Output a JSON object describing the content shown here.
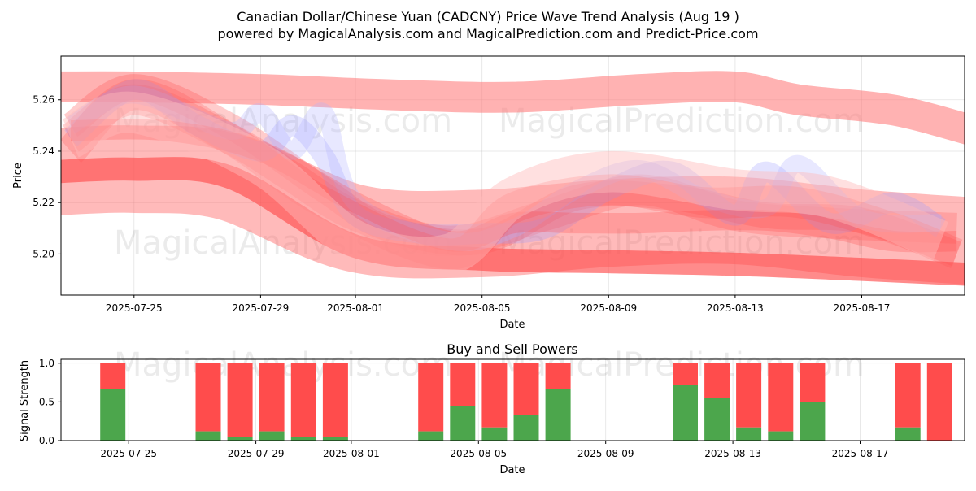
{
  "chart_data": [
    {
      "type": "area",
      "title": "Canadian Dollar/Chinese Yuan (CADCNY) Price Wave Trend Analysis (Aug 19 )",
      "subtitle": "powered by MagicalAnalysis.com and MagicalPrediction.com and Predict-Price.com",
      "xlabel": "Date",
      "ylabel": "Price",
      "x_start": "2025-07-23",
      "x_end": "2025-08-20",
      "ylim": [
        5.184,
        5.277
      ],
      "xticks": [
        {
          "label": "2025-07-25",
          "day": 2
        },
        {
          "label": "2025-07-29",
          "day": 6
        },
        {
          "label": "2025-08-01",
          "day": 9
        },
        {
          "label": "2025-08-05",
          "day": 13
        },
        {
          "label": "2025-08-09",
          "day": 17
        },
        {
          "label": "2025-08-13",
          "day": 21
        },
        {
          "label": "2025-08-17",
          "day": 25
        }
      ],
      "yticks": [
        {
          "label": "5.20",
          "value": 5.2
        },
        {
          "label": "5.22",
          "value": 5.22
        },
        {
          "label": "5.24",
          "value": 5.24
        },
        {
          "label": "5.26",
          "value": 5.26
        }
      ],
      "grid": true,
      "watermark": [
        "MagicalAnalysis.com",
        "MagicalPrediction.com"
      ],
      "bands": [
        {
          "name": "upper-trend",
          "color": "#ff7f7f",
          "opacity": 0.6,
          "width": 0.012,
          "x": [
            -0.5,
            2,
            6,
            10,
            14,
            18,
            21,
            23,
            26,
            28.5
          ],
          "y": [
            5.265,
            5.265,
            5.264,
            5.262,
            5.261,
            5.264,
            5.265,
            5.26,
            5.256,
            5.248
          ]
        },
        {
          "name": "middle-trend",
          "color": "#ff6666",
          "opacity": 0.45,
          "width": 0.034,
          "x": [
            -0.5,
            2,
            5,
            9,
            13,
            17,
            21,
            25,
            28.5
          ],
          "y": [
            5.232,
            5.233,
            5.23,
            5.21,
            5.208,
            5.212,
            5.213,
            5.208,
            5.205
          ]
        },
        {
          "name": "lower-trend",
          "color": "#ff4d4d",
          "opacity": 0.65,
          "width": 0.009,
          "x": [
            -0.5,
            2,
            5,
            9,
            13,
            17,
            21,
            25,
            28.5
          ],
          "y": [
            5.232,
            5.233,
            5.23,
            5.203,
            5.198,
            5.197,
            5.196,
            5.194,
            5.192
          ]
        },
        {
          "name": "wave-1",
          "color": "#ff5555",
          "opacity": 0.3,
          "width": 0.01,
          "x": [
            0,
            2,
            5,
            8,
            10,
            13,
            16,
            19,
            22,
            25,
            28
          ],
          "y": [
            5.25,
            5.265,
            5.25,
            5.225,
            5.21,
            5.205,
            5.222,
            5.222,
            5.215,
            5.213,
            5.2
          ]
        },
        {
          "name": "wave-2",
          "color": "#ff6666",
          "opacity": 0.3,
          "width": 0.012,
          "x": [
            0,
            2,
            5,
            7,
            9,
            12,
            15,
            18,
            21,
            24,
            28
          ],
          "y": [
            5.245,
            5.26,
            5.245,
            5.23,
            5.215,
            5.205,
            5.215,
            5.225,
            5.215,
            5.212,
            5.21
          ]
        },
        {
          "name": "wave-blue-1",
          "color": "#9999ff",
          "opacity": 0.28,
          "width": 0.008,
          "x": [
            0,
            2,
            4,
            6,
            7,
            8,
            9,
            11,
            13,
            15,
            17,
            19,
            21,
            22,
            24,
            26,
            27.5
          ],
          "y": [
            5.245,
            5.264,
            5.25,
            5.24,
            5.25,
            5.238,
            5.215,
            5.208,
            5.208,
            5.21,
            5.225,
            5.232,
            5.215,
            5.232,
            5.212,
            5.22,
            5.21
          ]
        },
        {
          "name": "wave-blue-2",
          "color": "#b3b3ff",
          "opacity": 0.3,
          "width": 0.007,
          "x": [
            0,
            2,
            5,
            6,
            7,
            8,
            9,
            12,
            14,
            16,
            18,
            20,
            22,
            23,
            25,
            27.5
          ],
          "y": [
            5.25,
            5.262,
            5.248,
            5.255,
            5.24,
            5.255,
            5.22,
            5.205,
            5.21,
            5.225,
            5.233,
            5.222,
            5.218,
            5.235,
            5.214,
            5.212
          ]
        },
        {
          "name": "wave-3",
          "color": "#ff5555",
          "opacity": 0.25,
          "width": 0.012,
          "x": [
            0,
            2,
            5,
            8,
            12,
            14,
            17,
            20,
            23,
            26,
            28
          ],
          "y": [
            5.24,
            5.262,
            5.245,
            5.22,
            5.2,
            5.218,
            5.225,
            5.22,
            5.22,
            5.21,
            5.2
          ]
        },
        {
          "name": "wave-4",
          "color": "#ff4444",
          "opacity": 0.25,
          "width": 0.008,
          "x": [
            0,
            3,
            6,
            9,
            12,
            14,
            16,
            18,
            20,
            22,
            24,
            26,
            28
          ],
          "y": [
            5.248,
            5.248,
            5.24,
            5.22,
            5.205,
            5.212,
            5.212,
            5.212,
            5.213,
            5.213,
            5.21,
            5.205,
            5.205
          ]
        },
        {
          "name": "wave-5",
          "color": "#ffbbbb",
          "opacity": 0.45,
          "width": 0.016,
          "x": [
            0,
            2,
            6,
            9,
            12,
            14,
            17,
            21,
            24,
            27.5
          ],
          "y": [
            5.245,
            5.255,
            5.235,
            5.205,
            5.2,
            5.222,
            5.232,
            5.225,
            5.222,
            5.205
          ]
        }
      ]
    },
    {
      "type": "bar",
      "title": "Buy and Sell Powers",
      "xlabel": "Date",
      "ylabel": "Signal Strength",
      "ylim": [
        0,
        1.05
      ],
      "yticks": [
        {
          "label": "0.0",
          "value": 0
        },
        {
          "label": "0.5",
          "value": 0.5
        },
        {
          "label": "1.0",
          "value": 1.0
        }
      ],
      "xticks": [
        {
          "label": "2025-07-25",
          "day": 2
        },
        {
          "label": "2025-07-29",
          "day": 6
        },
        {
          "label": "2025-08-01",
          "day": 9
        },
        {
          "label": "2025-08-05",
          "day": 13
        },
        {
          "label": "2025-08-09",
          "day": 17
        },
        {
          "label": "2025-08-13",
          "day": 21
        },
        {
          "label": "2025-08-17",
          "day": 25
        }
      ],
      "buy_color": "#4ca64c",
      "sell_color": "#ff4c4c",
      "series": [
        {
          "name": "Buy",
          "color": "#4ca64c"
        },
        {
          "name": "Sell",
          "color": "#ff4c4c"
        }
      ],
      "days": [
        1.5,
        4.5,
        5.5,
        6.5,
        7.5,
        8.5,
        11.5,
        12.5,
        13.5,
        14.5,
        15.5,
        19.5,
        20.5,
        21.5,
        22.5,
        23.5,
        26.5,
        27.5
      ],
      "dates": [
        "2025-07-24",
        "2025-07-27",
        "2025-07-28",
        "2025-07-29",
        "2025-07-30",
        "2025-07-31",
        "2025-08-03",
        "2025-08-04",
        "2025-08-05",
        "2025-08-06",
        "2025-08-07",
        "2025-08-11",
        "2025-08-12",
        "2025-08-13",
        "2025-08-14",
        "2025-08-15",
        "2025-08-18",
        "2025-08-19"
      ],
      "buy": [
        0.67,
        0.12,
        0.05,
        0.12,
        0.05,
        0.05,
        0.12,
        0.45,
        0.17,
        0.33,
        0.67,
        0.72,
        0.55,
        0.17,
        0.12,
        0.5,
        0.17,
        0.0
      ]
    }
  ]
}
